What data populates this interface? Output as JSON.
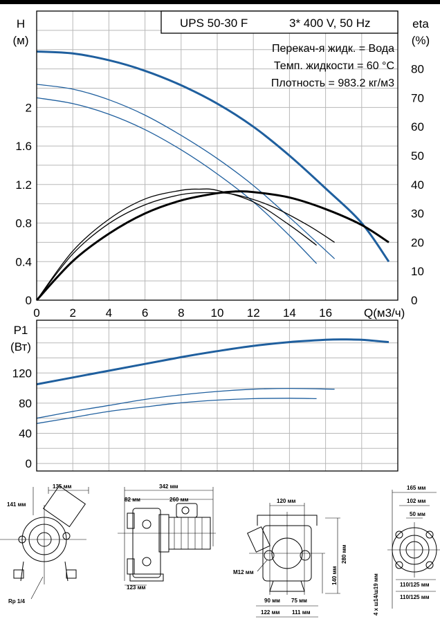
{
  "title_box": {
    "model": "UPS 50-30 F",
    "supply": "3* 400 V, 50 Hz"
  },
  "info_lines": [
    "Перекач-я жидк. = Вода",
    "Темп. жидкости = 60 °C",
    "Плотность = 983.2 кг/м3"
  ],
  "colors": {
    "curve_blue": "#1f5f9e",
    "curve_black": "#000000",
    "grid": "#b8b8b8"
  },
  "chart_data": [
    {
      "type": "line",
      "ylabel": [
        "H",
        "(м)"
      ],
      "y2label": [
        "eta",
        "(%)"
      ],
      "xlabel": "Q(м3/ч)",
      "xlim": [
        0,
        20
      ],
      "ylim": [
        0,
        3.0
      ],
      "y2lim": [
        0,
        100
      ],
      "x_ticks": [
        0,
        2,
        4,
        6,
        8,
        10,
        12,
        14,
        16
      ],
      "x_tick_labels": [
        "0",
        "2",
        "4",
        "6",
        "8",
        "10",
        "12",
        "14",
        "16"
      ],
      "y_ticks": [
        0,
        0.4,
        0.8,
        1.2,
        1.6,
        2.0
      ],
      "y_tick_labels": [
        "0",
        "0.4",
        "0.8",
        "1.2",
        "1.6",
        "2"
      ],
      "y2_ticks": [
        0,
        10,
        20,
        30,
        40,
        50,
        60,
        70,
        80
      ],
      "y2_tick_labels": [
        "0",
        "10",
        "20",
        "30",
        "40",
        "50",
        "60",
        "70",
        "80"
      ],
      "grid": true,
      "series": [
        {
          "axis": "H",
          "color": "blue",
          "weight": "thick",
          "x": [
            0,
            2,
            4,
            6,
            8,
            10,
            12,
            14,
            16,
            18,
            19.5
          ],
          "y": [
            2.58,
            2.56,
            2.49,
            2.38,
            2.23,
            2.04,
            1.8,
            1.5,
            1.16,
            0.8,
            0.4
          ]
        },
        {
          "axis": "H",
          "color": "blue",
          "weight": "thin",
          "x": [
            0,
            2,
            4,
            6,
            8,
            10,
            12,
            14,
            16.5
          ],
          "y": [
            2.24,
            2.19,
            2.08,
            1.92,
            1.71,
            1.47,
            1.19,
            0.86,
            0.43
          ]
        },
        {
          "axis": "H",
          "color": "blue",
          "weight": "thin",
          "x": [
            0,
            2,
            4,
            6,
            8,
            10,
            12,
            14,
            15.5
          ],
          "y": [
            2.1,
            2.04,
            1.93,
            1.77,
            1.56,
            1.31,
            1.02,
            0.67,
            0.38
          ]
        },
        {
          "axis": "eta",
          "color": "black",
          "weight": "thick",
          "x": [
            0,
            2,
            4,
            6,
            8,
            10,
            11,
            12,
            14,
            16,
            18,
            19.5
          ],
          "y": [
            0,
            13.5,
            23,
            30,
            34.5,
            37,
            37.6,
            37.4,
            35.5,
            31.5,
            26,
            20
          ]
        },
        {
          "axis": "eta",
          "color": "black",
          "weight": "thin",
          "x": [
            0,
            2,
            4,
            6,
            8,
            9,
            10,
            12,
            14,
            15.5
          ],
          "y": [
            0,
            17,
            28,
            35,
            38,
            38.4,
            38,
            34,
            26,
            19
          ]
        },
        {
          "axis": "eta",
          "color": "black",
          "weight": "thin",
          "x": [
            0,
            2,
            4,
            6,
            8,
            9.5,
            11,
            13,
            15,
            16.5
          ],
          "y": [
            0,
            16,
            26.5,
            33,
            36.5,
            37.2,
            36.5,
            32.5,
            26,
            20
          ]
        }
      ]
    },
    {
      "type": "line",
      "ylabel": [
        "P1",
        "(Вт)"
      ],
      "xlim": [
        0,
        20
      ],
      "ylim": [
        -10,
        190
      ],
      "y_ticks": [
        0,
        40,
        80,
        120
      ],
      "y_tick_labels": [
        "0",
        "40",
        "80",
        "120"
      ],
      "grid": true,
      "series": [
        {
          "color": "blue",
          "weight": "thick",
          "x": [
            0,
            2,
            4,
            6,
            8,
            10,
            12,
            14,
            16,
            17,
            18,
            19.5
          ],
          "y": [
            105,
            114,
            123,
            132,
            141,
            149,
            156,
            161,
            164,
            164.5,
            164,
            161
          ]
        },
        {
          "color": "blue",
          "weight": "thin",
          "x": [
            0,
            2,
            4,
            6,
            8,
            10,
            12,
            14,
            16.5
          ],
          "y": [
            60,
            69,
            77,
            85,
            91,
            95.5,
            98.5,
            99.5,
            98.5
          ]
        },
        {
          "color": "blue",
          "weight": "thin",
          "x": [
            0,
            2,
            4,
            6,
            8,
            10,
            12,
            14,
            15.5
          ],
          "y": [
            53,
            61,
            69,
            75,
            80.5,
            84,
            86,
            86.5,
            86
          ]
        }
      ]
    }
  ],
  "drawings": {
    "view1": {
      "dim_width": "135 мм",
      "dim_height": "141 мм",
      "thread": "Rp 1/4"
    },
    "view2": {
      "dim_total": "342 мм",
      "dim_left": "82 мм",
      "dim_right": "260 мм",
      "dim_foot": "123 мм"
    },
    "view3": {
      "dim_top": "120 мм",
      "dim_height": "280 мм",
      "dim_lower": "140 мм",
      "bolt": "M12 мм",
      "dim_a": "90 мм",
      "dim_b": "75 мм",
      "dim_c": "122 мм",
      "dim_d": "111 мм"
    },
    "view4": {
      "dim_outer": "165 мм",
      "dim_mid": "102 мм",
      "dim_inner": "50 мм",
      "holes": "4 x ш14/ш19 мм",
      "pcd1": "110/125 мм",
      "pcd2": "110/125 мм"
    }
  }
}
